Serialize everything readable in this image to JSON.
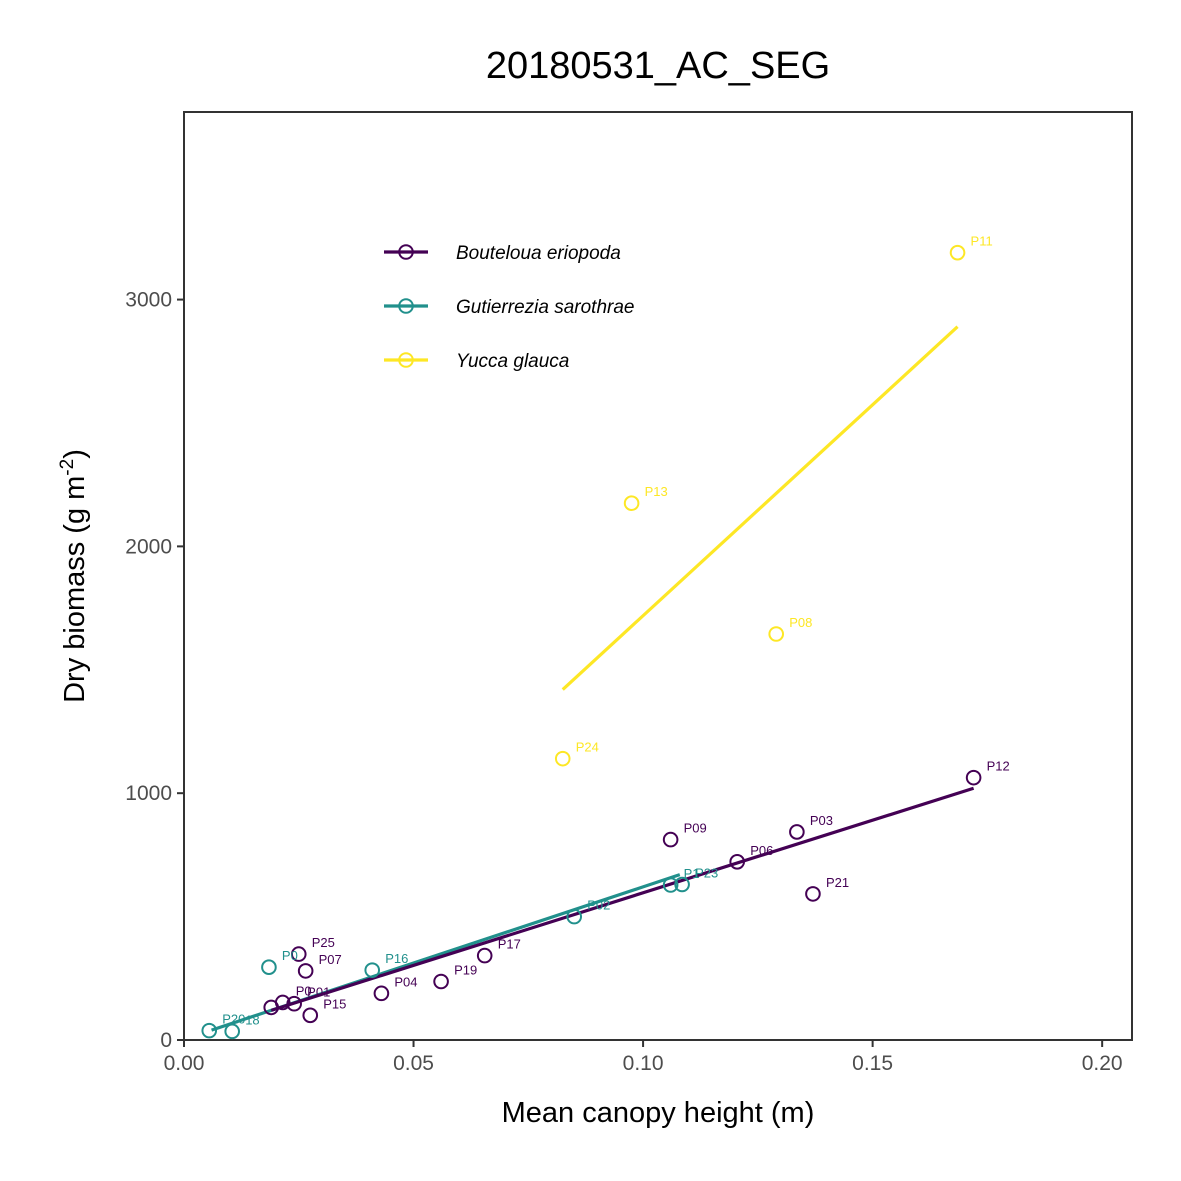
{
  "chart_data": {
    "type": "scatter",
    "title": "20180531_AC_SEG",
    "xlabel": "Mean canopy height (m)",
    "ylabel_main": "Dry biomass (g m",
    "ylabel_sup": "-2",
    "ylabel_close": ")",
    "xlim": [
      0.0,
      0.2065
    ],
    "ylim": [
      0,
      3760
    ],
    "x_ticks": [
      0.0,
      0.05,
      0.1,
      0.15,
      0.2
    ],
    "x_tick_labels": [
      "0.00",
      "0.05",
      "0.10",
      "0.15",
      "0.20"
    ],
    "y_ticks": [
      0,
      1000,
      2000,
      3000
    ],
    "y_tick_labels": [
      "0",
      "1000",
      "2000",
      "3000"
    ],
    "grid": false,
    "legend_position": "top-left",
    "series": [
      {
        "name": "Bouteloua eriopoda",
        "color": "#440154",
        "fit": [
          [
            0.019,
            120
          ],
          [
            0.172,
            1020
          ]
        ],
        "points": [
          {
            "x": 0.172,
            "y": 1063,
            "label": "P12"
          },
          {
            "x": 0.106,
            "y": 812,
            "label": "P09"
          },
          {
            "x": 0.1335,
            "y": 843,
            "label": "P03"
          },
          {
            "x": 0.1205,
            "y": 722,
            "label": "P06"
          },
          {
            "x": 0.137,
            "y": 592,
            "label": "P21"
          },
          {
            "x": 0.0655,
            "y": 342,
            "label": "P17"
          },
          {
            "x": 0.056,
            "y": 237,
            "label": "P19"
          },
          {
            "x": 0.043,
            "y": 189,
            "label": "P04"
          },
          {
            "x": 0.025,
            "y": 348,
            "label": "P25"
          },
          {
            "x": 0.0265,
            "y": 280,
            "label": "P07"
          },
          {
            "x": 0.0275,
            "y": 100,
            "label": "P15"
          },
          {
            "x": 0.024,
            "y": 147,
            "label": "P01"
          },
          {
            "x": 0.0215,
            "y": 152,
            "label": "P0"
          },
          {
            "x": 0.019,
            "y": 132,
            "label": ""
          }
        ]
      },
      {
        "name": "Gutierrezia sarothrae",
        "color": "#21908C",
        "fit": [
          [
            0.006,
            40
          ],
          [
            0.108,
            670
          ]
        ],
        "points": [
          {
            "x": 0.1085,
            "y": 630,
            "label": "P23"
          },
          {
            "x": 0.106,
            "y": 628,
            "label": "P1"
          },
          {
            "x": 0.085,
            "y": 500,
            "label": "P02"
          },
          {
            "x": 0.041,
            "y": 283,
            "label": "P16"
          },
          {
            "x": 0.0185,
            "y": 295,
            "label": "P0"
          },
          {
            "x": 0.0055,
            "y": 38,
            "label": "P20"
          },
          {
            "x": 0.0105,
            "y": 35,
            "label": "18"
          }
        ]
      },
      {
        "name": "Yucca glauca",
        "color": "#FDE725",
        "fit": [
          [
            0.0825,
            1420
          ],
          [
            0.1685,
            2890
          ]
        ],
        "points": [
          {
            "x": 0.1685,
            "y": 3190,
            "label": "P11"
          },
          {
            "x": 0.0975,
            "y": 2175,
            "label": "P13"
          },
          {
            "x": 0.129,
            "y": 1645,
            "label": "P08"
          },
          {
            "x": 0.0825,
            "y": 1140,
            "label": "P24"
          }
        ]
      }
    ]
  }
}
